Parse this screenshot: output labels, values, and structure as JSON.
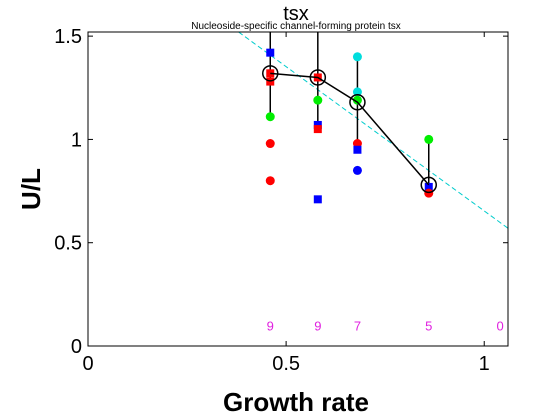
{
  "chart_data": {
    "type": "scatter",
    "title": "tsx",
    "subtitle": "Nucleoside-specific channel-forming protein tsx",
    "xlabel": "Growth rate",
    "ylabel": "U/L",
    "xlim": [
      0,
      1.06
    ],
    "ylim": [
      0,
      1.52
    ],
    "xticks": [
      0,
      0.5,
      1
    ],
    "xtick_labels": [
      "0",
      "0.5",
      "1"
    ],
    "yticks": [
      0,
      0.5,
      1,
      1.5
    ],
    "ytick_labels": [
      "0",
      "0.5",
      "1",
      "1.5"
    ],
    "grid": false,
    "colors": {
      "red": "#ff0000",
      "green": "#00ee00",
      "blue": "#0000ff",
      "cyan": "#00dddd",
      "mean_line": "#000000",
      "fit_line": "#00cccc",
      "counts": "#e020e0"
    },
    "mean_series": {
      "x": [
        0.46,
        0.58,
        0.68,
        0.86
      ],
      "y": [
        1.32,
        1.3,
        1.18,
        0.78
      ]
    },
    "whiskers": [
      {
        "x": 0.46,
        "y_low": 1.11,
        "y_high": 1.52
      },
      {
        "x": 0.58,
        "y_low": 1.07,
        "y_high": 1.52
      },
      {
        "x": 0.68,
        "y_low": 0.96,
        "y_high": 1.4
      },
      {
        "x": 0.86,
        "y_low": 0.76,
        "y_high": 1.0
      }
    ],
    "fit_line": {
      "x": [
        0.38,
        1.06
      ],
      "y": [
        1.52,
        0.57
      ]
    },
    "points": [
      {
        "x": 0.46,
        "y": 1.42,
        "color": "blue",
        "marker": "square"
      },
      {
        "x": 0.46,
        "y": 1.32,
        "color": "red",
        "marker": "square"
      },
      {
        "x": 0.46,
        "y": 1.28,
        "color": "red",
        "marker": "square"
      },
      {
        "x": 0.46,
        "y": 1.11,
        "color": "green",
        "marker": "circle"
      },
      {
        "x": 0.46,
        "y": 0.98,
        "color": "red",
        "marker": "circle"
      },
      {
        "x": 0.46,
        "y": 0.8,
        "color": "red",
        "marker": "circle"
      },
      {
        "x": 0.58,
        "y": 1.3,
        "color": "red",
        "marker": "square"
      },
      {
        "x": 0.58,
        "y": 1.19,
        "color": "green",
        "marker": "circle"
      },
      {
        "x": 0.58,
        "y": 1.07,
        "color": "blue",
        "marker": "square"
      },
      {
        "x": 0.58,
        "y": 1.05,
        "color": "red",
        "marker": "square"
      },
      {
        "x": 0.58,
        "y": 0.71,
        "color": "blue",
        "marker": "square"
      },
      {
        "x": 0.68,
        "y": 1.4,
        "color": "cyan",
        "marker": "circle"
      },
      {
        "x": 0.68,
        "y": 1.23,
        "color": "cyan",
        "marker": "circle"
      },
      {
        "x": 0.68,
        "y": 1.19,
        "color": "green",
        "marker": "circle"
      },
      {
        "x": 0.68,
        "y": 0.98,
        "color": "red",
        "marker": "circle"
      },
      {
        "x": 0.68,
        "y": 0.95,
        "color": "blue",
        "marker": "square"
      },
      {
        "x": 0.68,
        "y": 0.85,
        "color": "blue",
        "marker": "circle"
      },
      {
        "x": 0.86,
        "y": 1.0,
        "color": "green",
        "marker": "circle"
      },
      {
        "x": 0.86,
        "y": 0.77,
        "color": "blue",
        "marker": "square"
      },
      {
        "x": 0.86,
        "y": 0.74,
        "color": "red",
        "marker": "circle"
      }
    ],
    "counts": [
      {
        "x": 0.46,
        "label": "9"
      },
      {
        "x": 0.58,
        "label": "9"
      },
      {
        "x": 0.68,
        "label": "7"
      },
      {
        "x": 0.86,
        "label": "5"
      },
      {
        "x": 1.04,
        "label": "0"
      }
    ],
    "counts_y": 0.1
  }
}
